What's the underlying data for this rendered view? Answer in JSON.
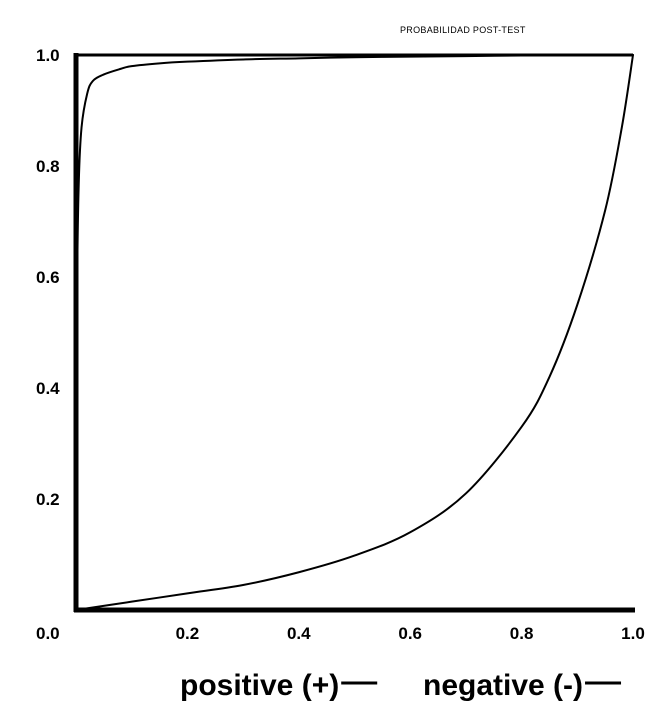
{
  "chart_data": {
    "type": "line",
    "title": "PROBABILIDAD POST-TEST",
    "xlabel": "",
    "ylabel": "",
    "xlim": [
      0,
      1
    ],
    "ylim": [
      0,
      1
    ],
    "x_ticks": [
      "0.0",
      "0.2",
      "0.4",
      "0.6",
      "0.8",
      "1.0"
    ],
    "y_ticks": [
      "1.0",
      "0.8",
      "0.6",
      "0.4",
      "0.2"
    ],
    "grid": false,
    "legend_placement": "bottom",
    "series": [
      {
        "name": "positive (+)",
        "color": "#000000",
        "x": [
          0,
          0.002,
          0.005,
          0.01,
          0.02,
          0.03,
          0.05,
          0.08,
          0.1,
          0.15,
          0.2,
          0.3,
          0.4,
          0.5,
          0.6,
          0.7,
          0.8,
          0.9,
          1.0
        ],
        "y": [
          0,
          0.57,
          0.77,
          0.87,
          0.93,
          0.953,
          0.965,
          0.975,
          0.98,
          0.985,
          0.988,
          0.992,
          0.994,
          0.996,
          0.997,
          0.998,
          0.999,
          0.9995,
          1.0
        ]
      },
      {
        "name": "negative (-)",
        "color": "#000000",
        "x": [
          0,
          0.1,
          0.2,
          0.3,
          0.4,
          0.5,
          0.6,
          0.7,
          0.8,
          0.85,
          0.9,
          0.95,
          0.98,
          1.0
        ],
        "y": [
          0,
          0.015,
          0.03,
          0.045,
          0.068,
          0.098,
          0.14,
          0.21,
          0.33,
          0.42,
          0.55,
          0.72,
          0.87,
          1.0
        ]
      }
    ]
  }
}
